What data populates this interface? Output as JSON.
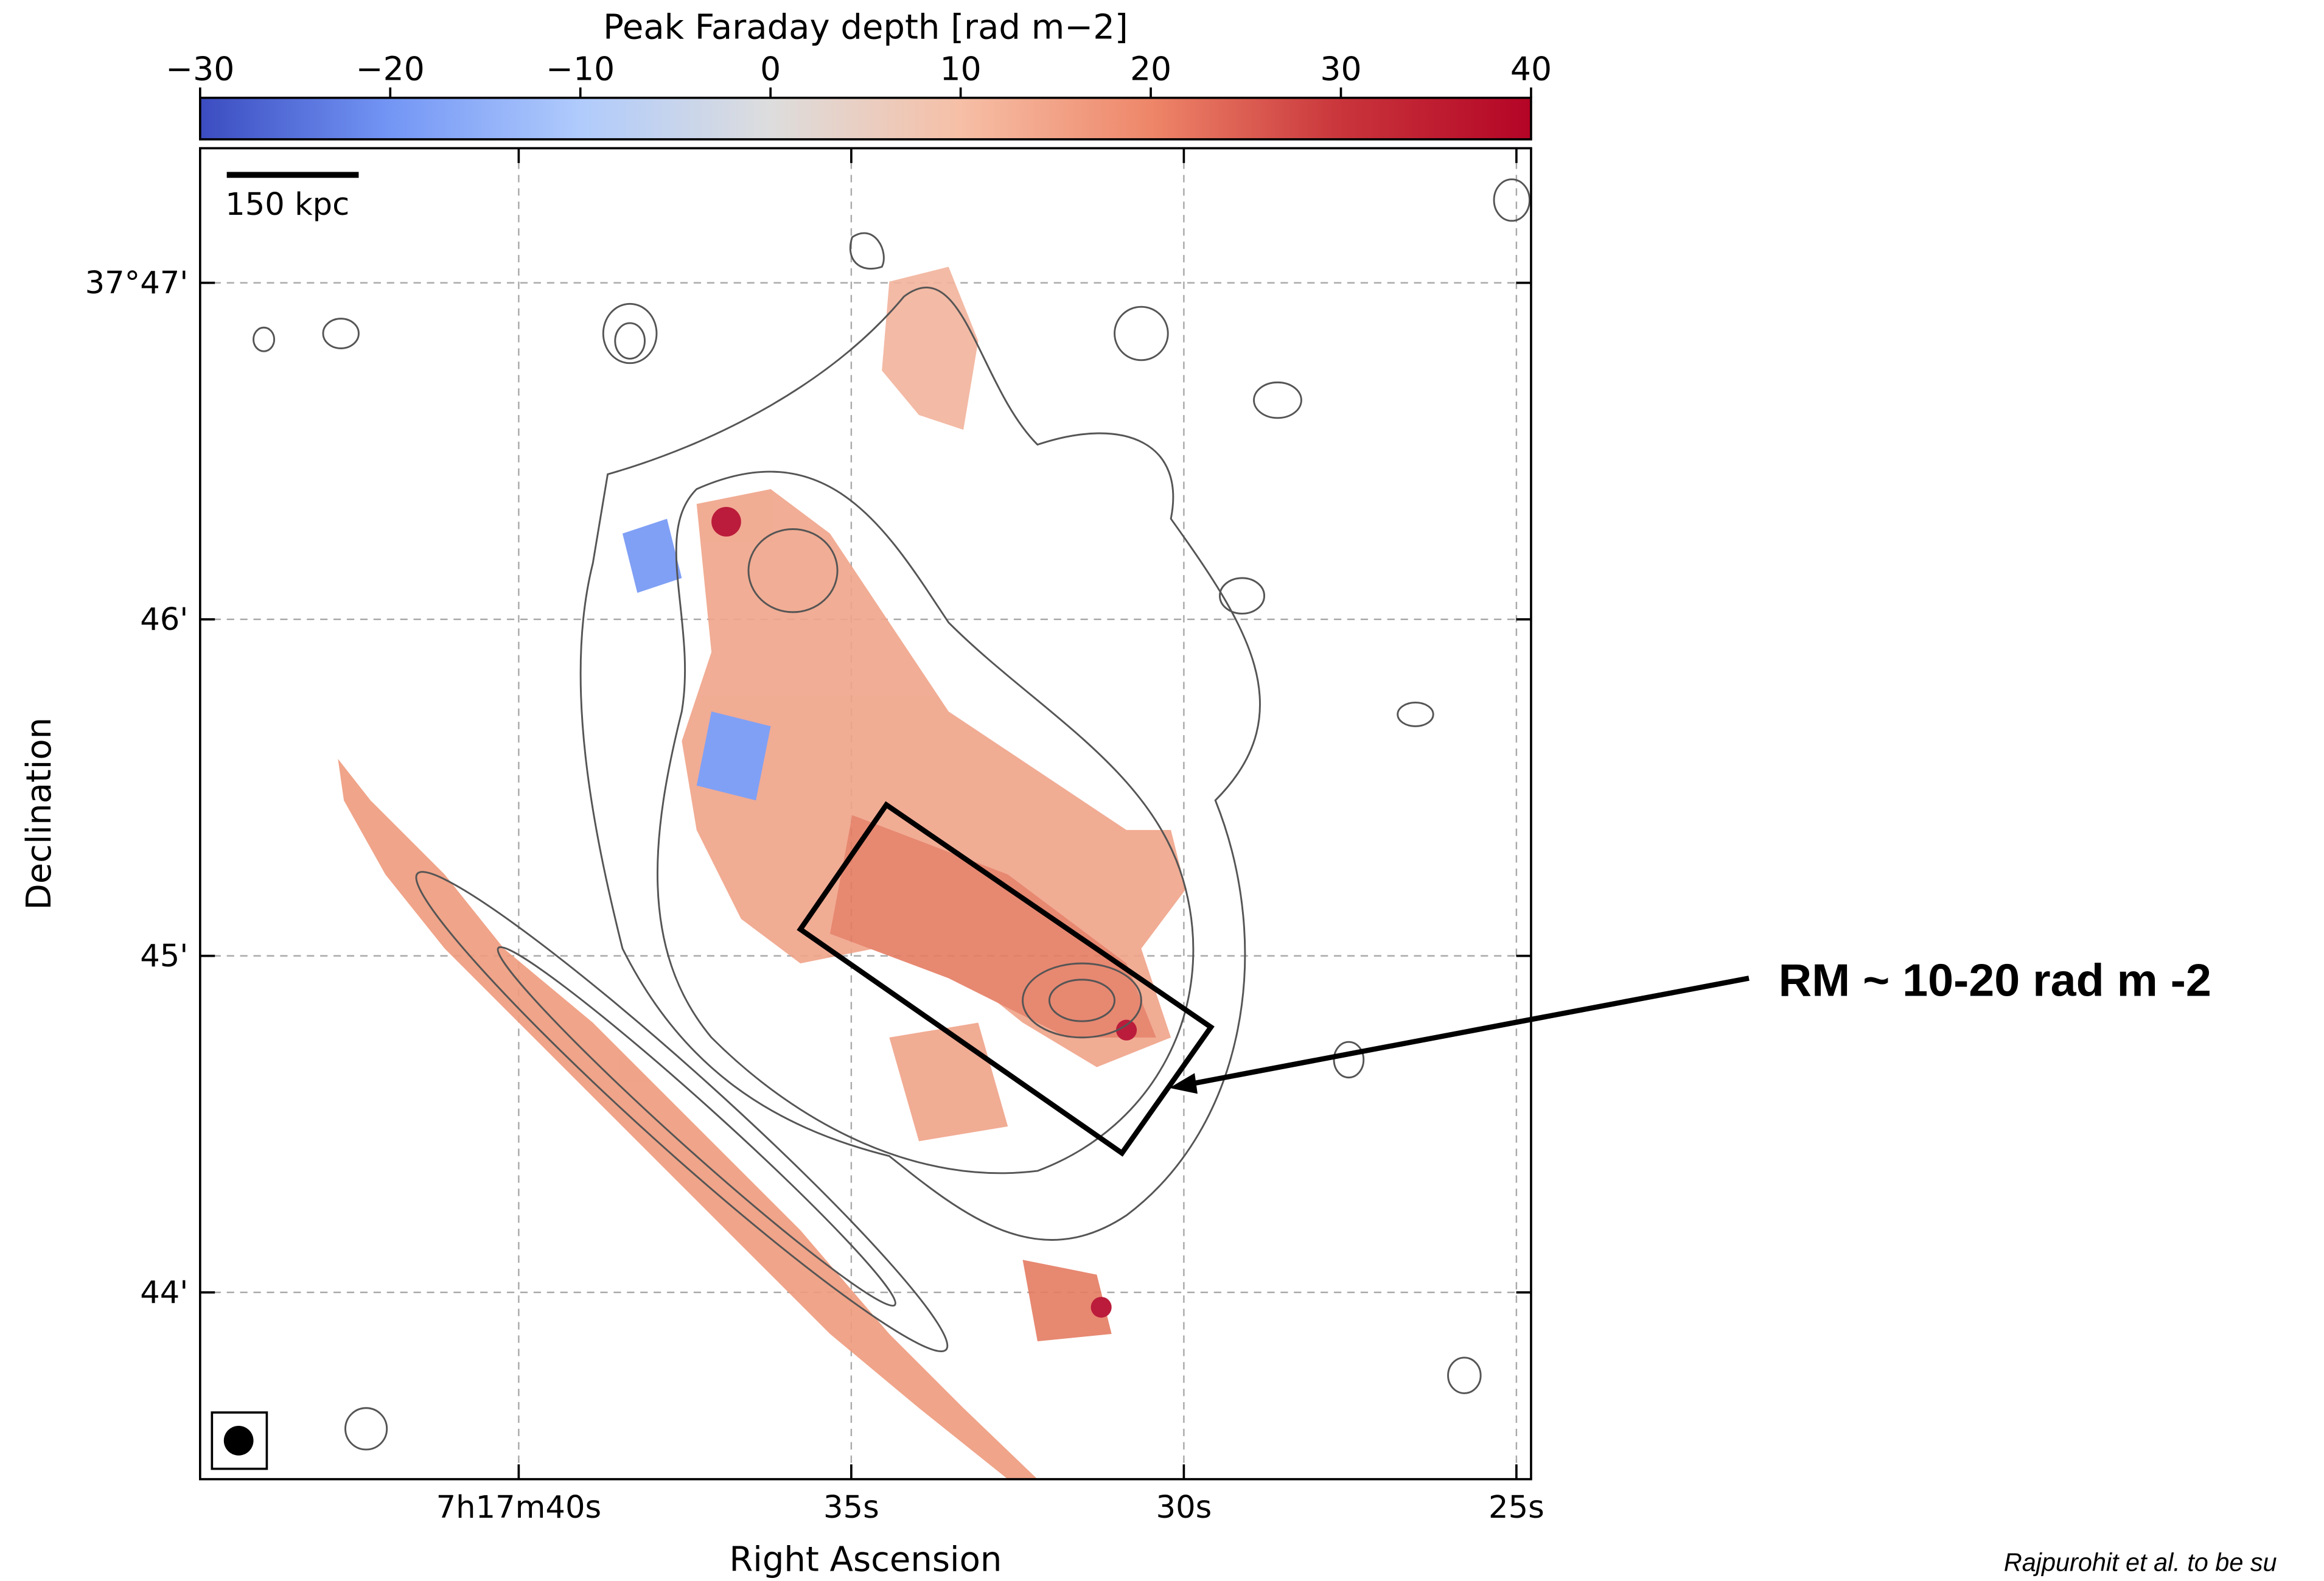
{
  "chart_data": {
    "type": "map",
    "colorbar": {
      "label": "Peak Faraday depth [rad m−2]",
      "clim": [
        -30,
        40
      ],
      "ticks": [
        {
          "value": -30,
          "label": "−30"
        },
        {
          "value": -20,
          "label": "−20"
        },
        {
          "value": -10,
          "label": "−10"
        },
        0,
        10,
        20,
        30,
        40
      ],
      "colors": [
        "#3b4cc0",
        "#7396f5",
        "#b0cbfc",
        "#dddddd",
        "#f6bfa6",
        "#ee8669",
        "#c9353b",
        "#b40426"
      ]
    },
    "xlabel": "Right Ascension",
    "ylabel": "Declination",
    "xlim": [
      44.79,
      24.78
    ],
    "ylim": [
      43.445,
      47.4
    ],
    "xticks": [
      {
        "value": 40,
        "label": "7h17m40s"
      },
      {
        "value": 35,
        "label": "35s"
      },
      {
        "value": 30,
        "label": "30s"
      },
      {
        "value": 25,
        "label": "25s"
      }
    ],
    "yticks": [
      {
        "value": 47,
        "label": "37°47'"
      },
      {
        "value": 46,
        "label": "46'"
      },
      {
        "value": 45,
        "label": "45'"
      },
      {
        "value": 44,
        "label": "44'"
      }
    ],
    "grid": true,
    "scalebar": "150 kpc",
    "annotation": "RM  ~ 10-20 rad m -2",
    "credit": "Rajpurohit et al. to be su"
  }
}
